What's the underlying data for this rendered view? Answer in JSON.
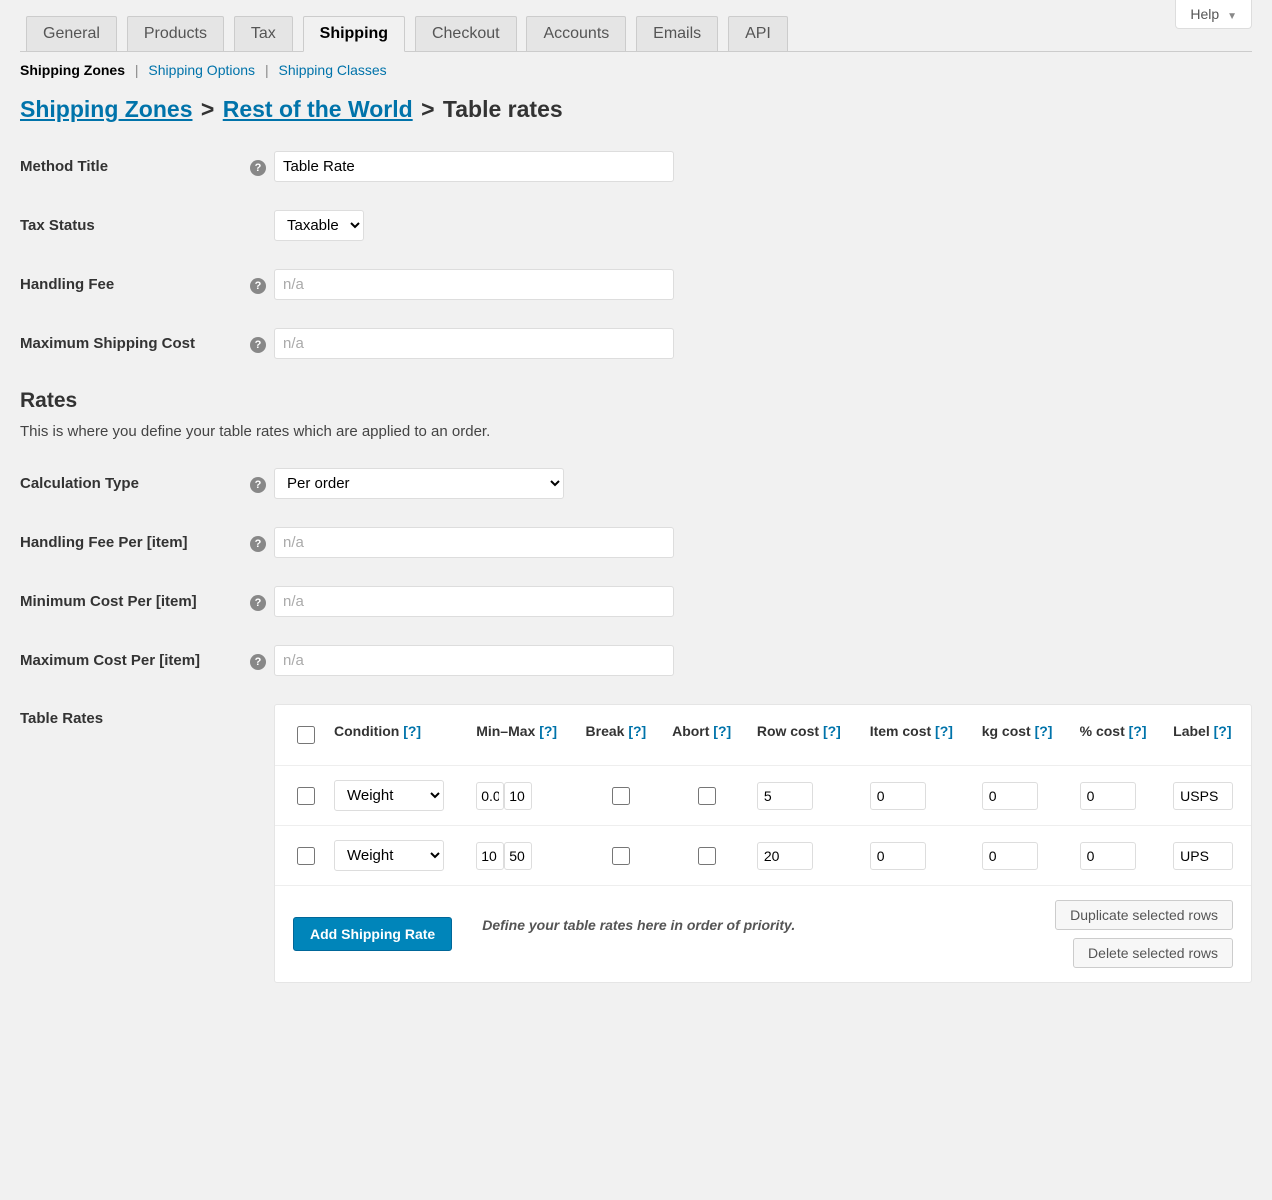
{
  "help_button": "Help",
  "tabs": {
    "general": "General",
    "products": "Products",
    "tax": "Tax",
    "shipping": "Shipping",
    "checkout": "Checkout",
    "accounts": "Accounts",
    "emails": "Emails",
    "api": "API"
  },
  "subnav": {
    "zones": "Shipping Zones",
    "options": "Shipping Options",
    "classes": "Shipping Classes"
  },
  "breadcrumb": {
    "zones": "Shipping Zones",
    "rest": "Rest of the World",
    "tail": "Table rates"
  },
  "labels": {
    "method_title": "Method Title",
    "tax_status": "Tax Status",
    "handling_fee": "Handling Fee",
    "max_ship_cost": "Maximum Shipping Cost",
    "calc_type": "Calculation Type",
    "handling_fee_per": "Handling Fee Per [item]",
    "min_cost_per": "Minimum Cost Per [item]",
    "max_cost_per": "Maximum Cost Per [item]",
    "table_rates": "Table Rates"
  },
  "values": {
    "method_title": "Table Rate",
    "tax_status": "Taxable",
    "calc_type": "Per order"
  },
  "placeholders": {
    "na": "n/a"
  },
  "section": {
    "rates_title": "Rates",
    "rates_desc": "This is where you define your table rates which are applied to an order."
  },
  "table": {
    "headers": {
      "condition": "Condition",
      "minmax": "Min–Max",
      "break": "Break",
      "abort": "Abort",
      "row_cost": "Row cost",
      "item_cost": "Item cost",
      "kg_cost": "kg cost",
      "pct_cost": "% cost",
      "label": "Label"
    },
    "help": "[?]",
    "rows": [
      {
        "condition": "Weight",
        "min": "0.0",
        "max": "10",
        "row_cost": "5",
        "item_cost": "0",
        "kg_cost": "0",
        "pct_cost": "0",
        "label": "USPS"
      },
      {
        "condition": "Weight",
        "min": "10",
        "max": "50",
        "row_cost": "20",
        "item_cost": "0",
        "kg_cost": "0",
        "pct_cost": "0",
        "label": "UPS"
      }
    ]
  },
  "footer": {
    "add": "Add Shipping Rate",
    "note": "Define your table rates here in order of priority.",
    "duplicate": "Duplicate selected rows",
    "delete": "Delete selected rows"
  }
}
